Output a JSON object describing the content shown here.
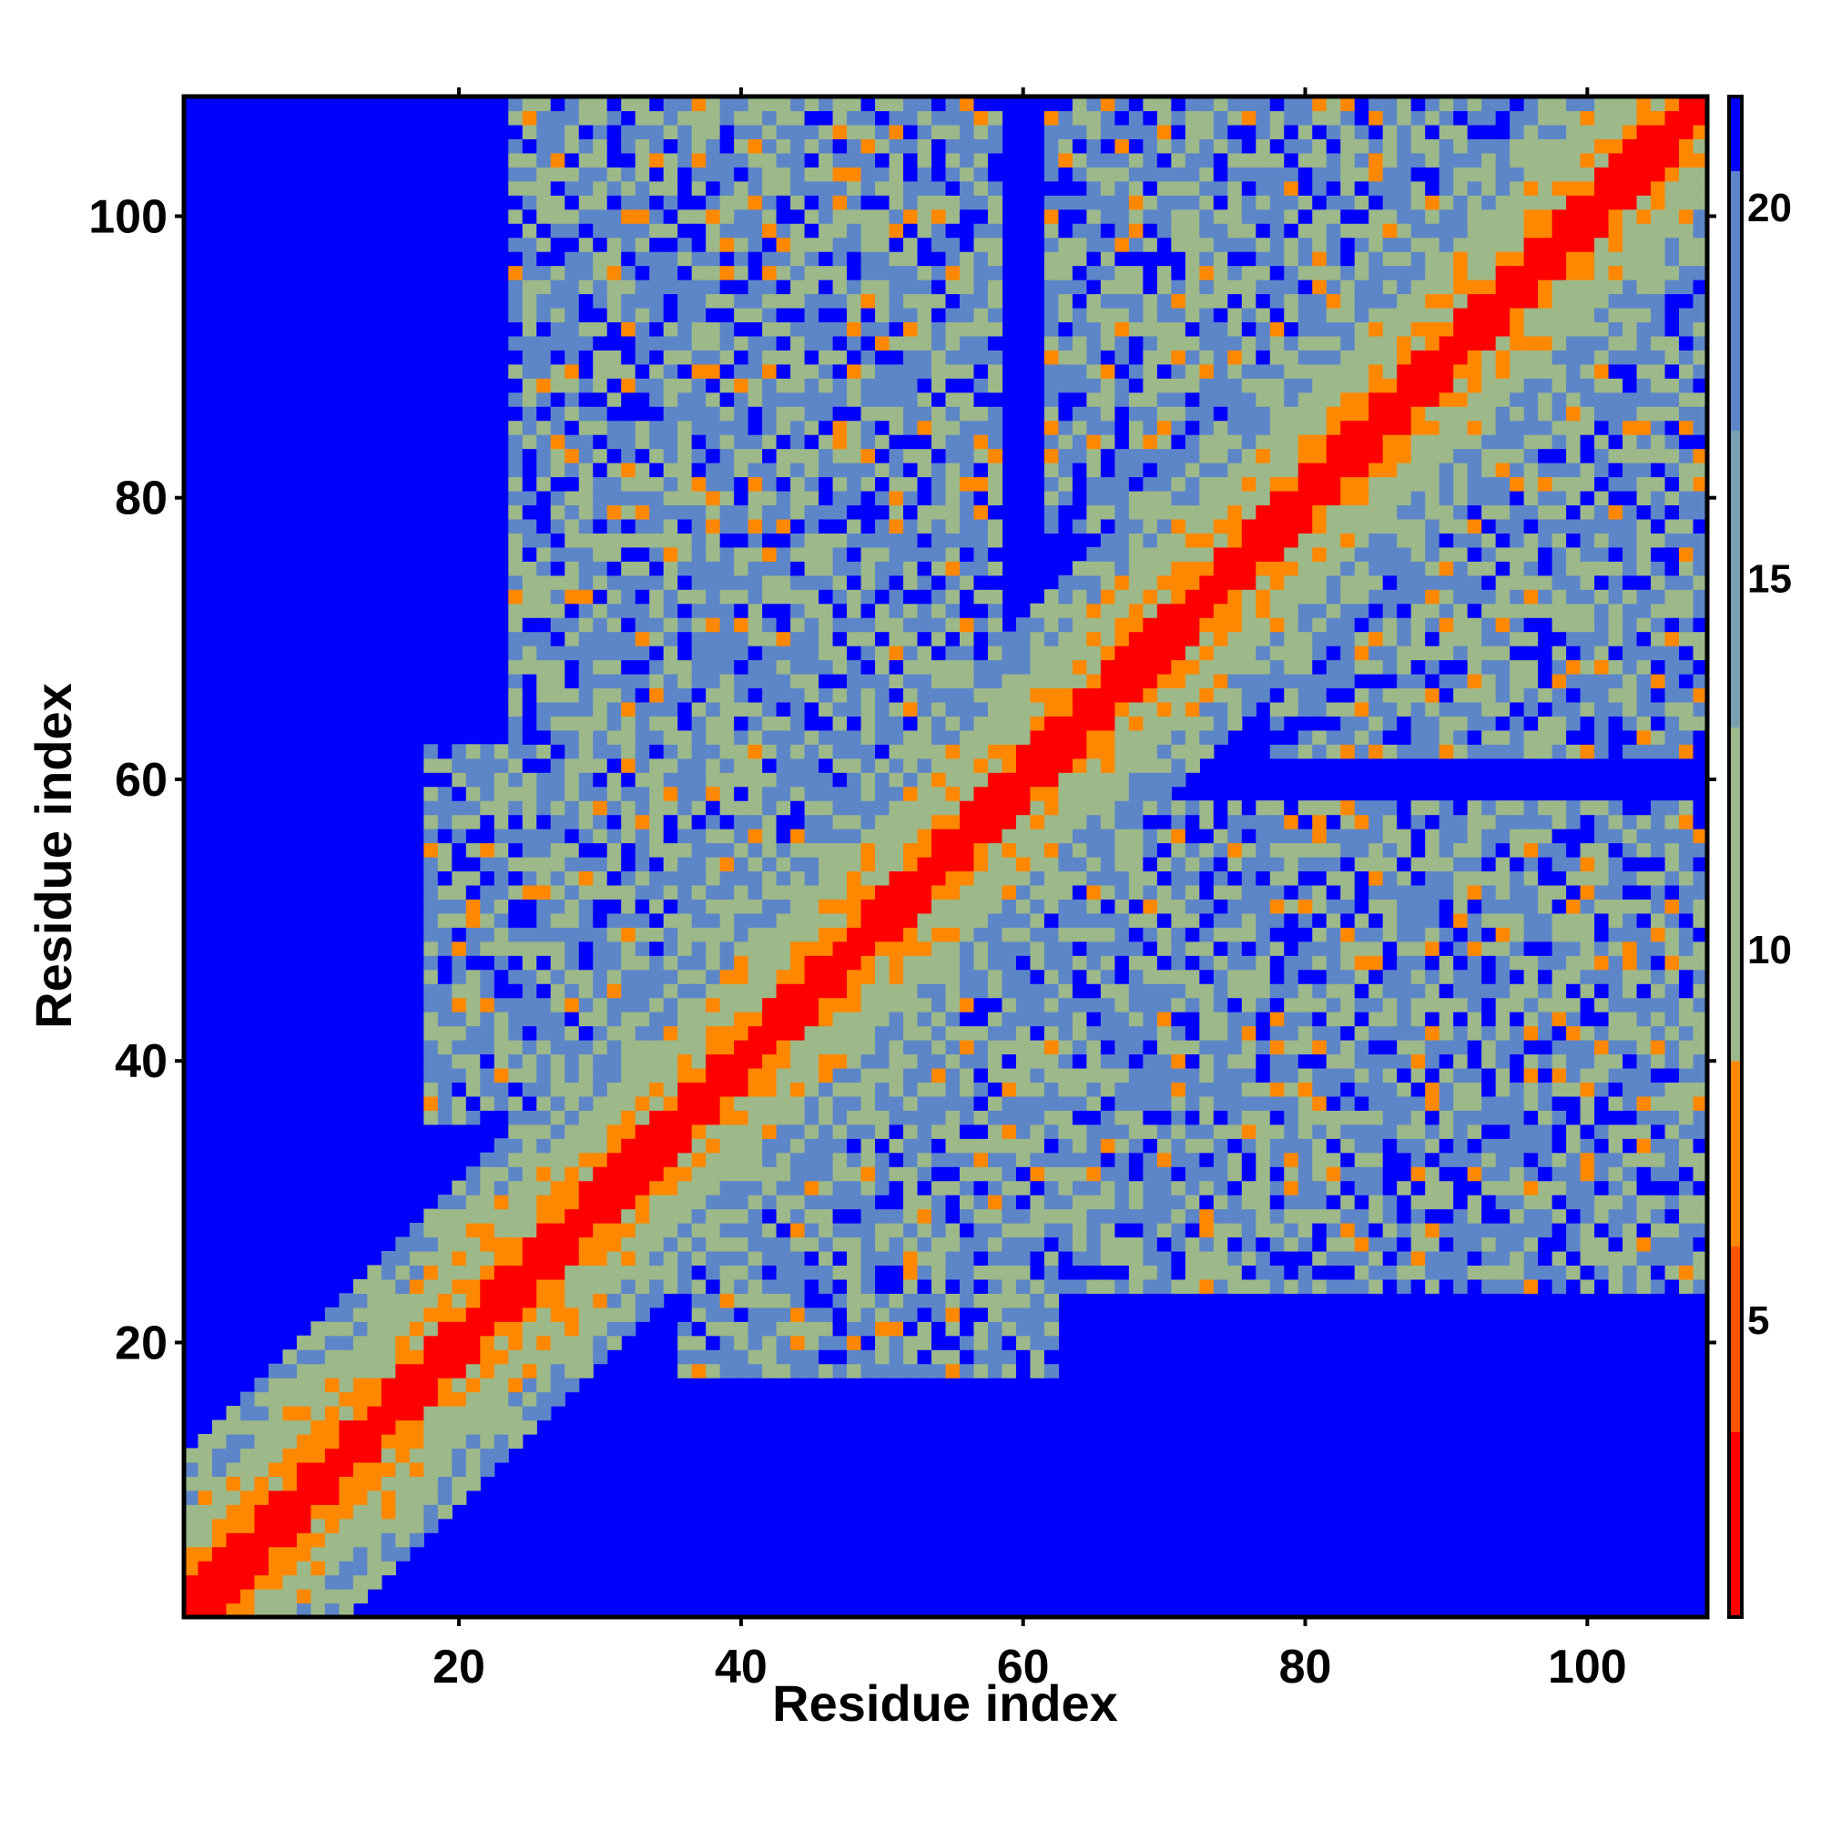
{
  "chart_data": {
    "type": "heatmap",
    "title": "",
    "xlabel": "Residue index",
    "ylabel": "Residue index",
    "n_residues": 108,
    "xlim": [
      1,
      108
    ],
    "ylim": [
      1,
      108
    ],
    "x_ticks": [
      20,
      40,
      60,
      80,
      100
    ],
    "y_ticks": [
      20,
      40,
      60,
      80,
      100
    ],
    "colorbar": {
      "range": [
        1,
        21.5
      ],
      "ticks": [
        5,
        10,
        15,
        20
      ],
      "placement": "right",
      "colors": {
        "contact": "#ff0000",
        "near": "#ff8800",
        "mid": "#9db889",
        "far": "#5d86c8",
        "background": "#0000ff"
      }
    },
    "structure": {
      "diagonal_band_width": 3,
      "contact_regions": [
        {
          "x": [
            24,
            58
          ],
          "y": [
            62,
            108
          ],
          "description_shown": "upper-left off-diagonal block"
        },
        {
          "x": [
            62,
            108
          ],
          "y": [
            24,
            58
          ],
          "description_shown": "lower-right off-diagonal block"
        },
        {
          "x": [
            62,
            100
          ],
          "y": [
            78,
            108
          ],
          "description_shown": "upper-right block"
        },
        {
          "x": [
            78,
            108
          ],
          "y": [
            62,
            100
          ],
          "description_shown": "mirrored upper-right block"
        },
        {
          "x": [
            18,
            50
          ],
          "y": [
            36,
            62
          ],
          "description_shown": "central block"
        },
        {
          "x": [
            36,
            62
          ],
          "y": [
            18,
            50
          ],
          "description_shown": "mirrored central block"
        }
      ]
    }
  }
}
